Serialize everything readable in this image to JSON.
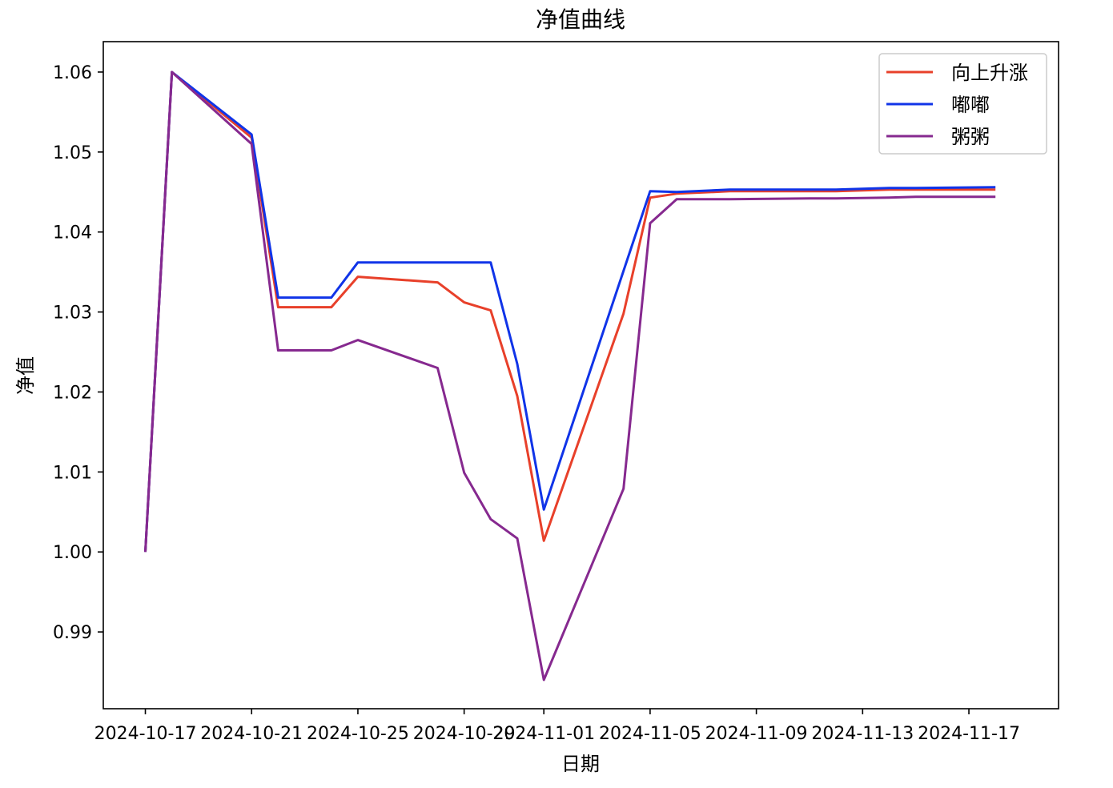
{
  "chart_data": {
    "type": "line",
    "title": "净值曲线",
    "xlabel": "日期",
    "ylabel": "净值",
    "x_ticks": [
      "2024-10-17",
      "2024-10-21",
      "2024-10-25",
      "2024-10-29",
      "2024-11-01",
      "2024-11-05",
      "2024-11-09",
      "2024-11-13",
      "2024-11-17"
    ],
    "y_ticks": [
      "0.99",
      "1.00",
      "1.01",
      "1.02",
      "1.03",
      "1.04",
      "1.05",
      "1.06"
    ],
    "xlim": [
      "2024-10-15T10:00",
      "2024-11-20T09:00"
    ],
    "ylim": [
      0.9804,
      1.0638
    ],
    "grid": false,
    "legend_position": "top-right",
    "series": [
      {
        "name": "向上升涨",
        "color": "#e8402a",
        "points": [
          [
            "2024-10-17",
            1.0
          ],
          [
            "2024-10-18",
            1.06
          ],
          [
            "2024-10-21",
            1.0518
          ],
          [
            "2024-10-22",
            1.0306
          ],
          [
            "2024-10-24",
            1.0306
          ],
          [
            "2024-10-25",
            1.0344
          ],
          [
            "2024-10-28",
            1.0337
          ],
          [
            "2024-10-29",
            1.0312
          ],
          [
            "2024-10-30",
            1.0302
          ],
          [
            "2024-10-31",
            1.0195
          ],
          [
            "2024-11-01",
            1.0014
          ],
          [
            "2024-11-04",
            1.0298
          ],
          [
            "2024-11-05",
            1.0443
          ],
          [
            "2024-11-06",
            1.0448
          ],
          [
            "2024-11-08",
            1.0451
          ],
          [
            "2024-11-11",
            1.0451
          ],
          [
            "2024-11-12",
            1.0451
          ],
          [
            "2024-11-14",
            1.0453
          ],
          [
            "2024-11-15",
            1.0453
          ],
          [
            "2024-11-18",
            1.0453
          ]
        ]
      },
      {
        "name": "嘟嘟",
        "color": "#1034e8",
        "points": [
          [
            "2024-10-17",
            1.0
          ],
          [
            "2024-10-18",
            1.06
          ],
          [
            "2024-10-21",
            1.0522
          ],
          [
            "2024-10-22",
            1.0318
          ],
          [
            "2024-10-24",
            1.0318
          ],
          [
            "2024-10-25",
            1.0362
          ],
          [
            "2024-10-28",
            1.0362
          ],
          [
            "2024-10-29",
            1.0362
          ],
          [
            "2024-10-30",
            1.0362
          ],
          [
            "2024-10-31",
            1.0235
          ],
          [
            "2024-11-01",
            1.0053
          ],
          [
            "2024-11-05",
            1.0451
          ],
          [
            "2024-11-06",
            1.045
          ],
          [
            "2024-11-08",
            1.0453
          ],
          [
            "2024-11-11",
            1.0453
          ],
          [
            "2024-11-12",
            1.0453
          ],
          [
            "2024-11-14",
            1.0455
          ],
          [
            "2024-11-15",
            1.0455
          ],
          [
            "2024-11-18",
            1.0456
          ]
        ]
      },
      {
        "name": "粥粥",
        "color": "#86298f",
        "points": [
          [
            "2024-10-17",
            1.0
          ],
          [
            "2024-10-18",
            1.06
          ],
          [
            "2024-10-21",
            1.051
          ],
          [
            "2024-10-22",
            1.0252
          ],
          [
            "2024-10-24",
            1.0252
          ],
          [
            "2024-10-25",
            1.0265
          ],
          [
            "2024-10-28",
            1.023
          ],
          [
            "2024-10-29",
            1.0099
          ],
          [
            "2024-10-30",
            1.0041
          ],
          [
            "2024-10-31",
            1.0017
          ],
          [
            "2024-11-01",
            0.984
          ],
          [
            "2024-11-04",
            1.0079
          ],
          [
            "2024-11-05",
            1.0411
          ],
          [
            "2024-11-06",
            1.0441
          ],
          [
            "2024-11-08",
            1.0441
          ],
          [
            "2024-11-11",
            1.0442
          ],
          [
            "2024-11-12",
            1.0442
          ],
          [
            "2024-11-14",
            1.0443
          ],
          [
            "2024-11-15",
            1.0444
          ],
          [
            "2024-11-18",
            1.0444
          ]
        ]
      }
    ]
  }
}
